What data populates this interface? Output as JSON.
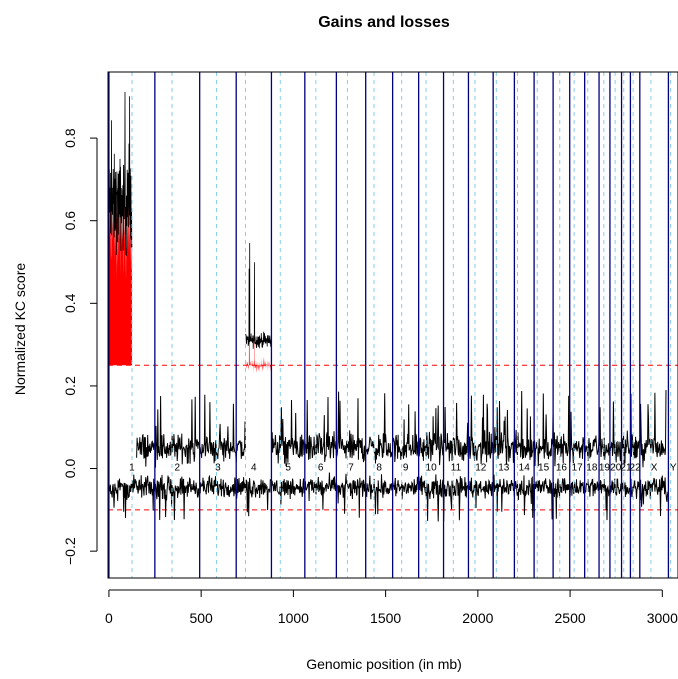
{
  "chart_data": {
    "type": "line",
    "title": "Gains and losses",
    "xlabel": "Genomic position (in mb)",
    "ylabel": "Normalized KC score",
    "xlim": [
      -5,
      3085
    ],
    "ylim": [
      -0.265,
      0.96
    ],
    "xticks": [
      0,
      500,
      1000,
      1500,
      2000,
      2500,
      3000
    ],
    "yticks": [
      -0.2,
      0.0,
      0.2,
      0.4,
      0.6,
      0.8
    ],
    "thresholds": {
      "gain": 0.25,
      "loss": -0.1
    },
    "chromosome_boundaries": [
      0,
      249,
      492,
      690,
      881,
      1062,
      1233,
      1392,
      1538,
      1679,
      1814,
      1949,
      2083,
      2198,
      2305,
      2408,
      2498,
      2579,
      2657,
      2716,
      2779,
      2827,
      2878,
      3033,
      3088
    ],
    "centromeres": [
      125,
      93,
      91,
      50,
      48,
      60,
      60,
      45,
      49,
      40,
      53,
      35,
      17,
      17,
      17,
      36,
      24,
      17,
      26,
      28,
      12,
      15,
      60,
      12
    ],
    "chromosome_labels": [
      "1",
      "2",
      "3",
      "4",
      "5",
      "6",
      "7",
      "8",
      "9",
      "10",
      "11",
      "12",
      "13",
      "14",
      "15",
      "16",
      "17",
      "18",
      "19",
      "20",
      "21",
      "22",
      "X",
      "Y"
    ],
    "gain_regions": [
      {
        "chromosome": "1",
        "start": 0,
        "end": 125,
        "mean": 0.64,
        "peak": 0.93
      },
      {
        "chromosome": "4",
        "start": 742,
        "end": 881,
        "mean": 0.31,
        "peak": 0.55
      }
    ],
    "series": [
      {
        "type": "upper",
        "baseline": 0.05,
        "spike_max": 0.2
      },
      {
        "type": "lower",
        "baseline": -0.045,
        "spike_min": -0.22
      }
    ]
  }
}
